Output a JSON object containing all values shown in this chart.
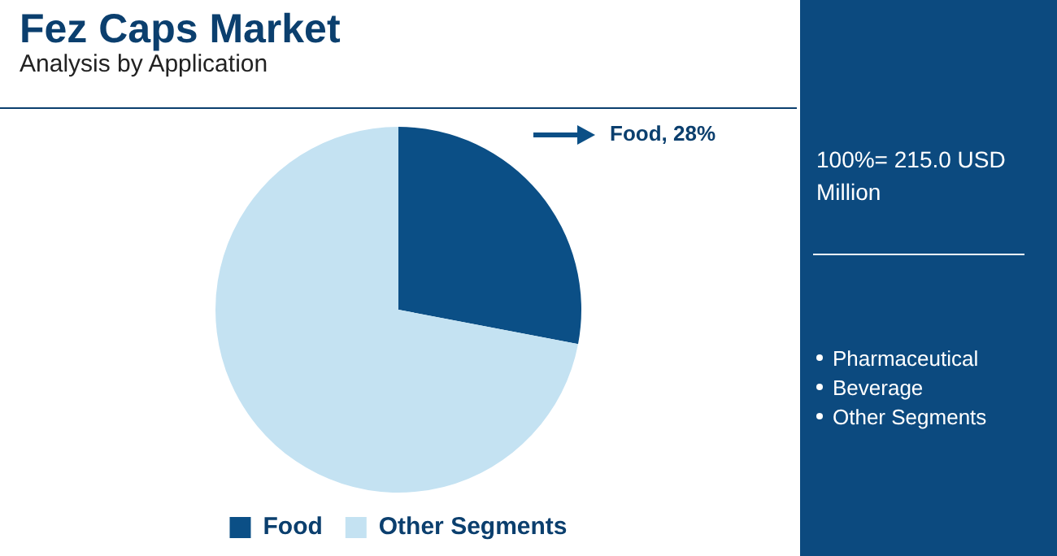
{
  "chart_data": {
    "type": "pie",
    "title": "Fez Caps Market",
    "subtitle": "Analysis by Application",
    "categories": [
      "Food",
      "Other Segments"
    ],
    "values": [
      28,
      72
    ],
    "colors": [
      "#0b4f86",
      "#c4e2f2"
    ],
    "value_labels": [
      "Food, 28%",
      null
    ],
    "legend": "bottom",
    "annotations": [
      "100%= 215.0 USD Million",
      "Pharmaceutical",
      "Beverage",
      "Other Segments"
    ]
  }
}
